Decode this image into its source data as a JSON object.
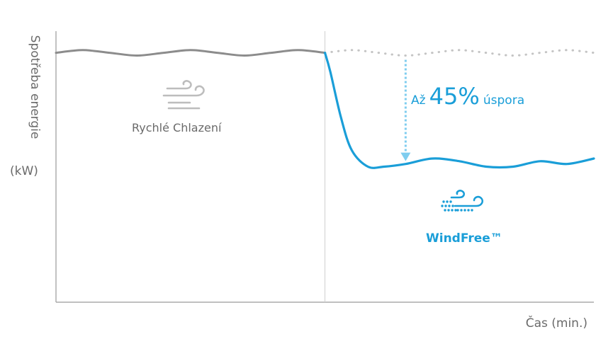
{
  "chart_data": {
    "type": "line",
    "ylabel": "Spotřeba energie",
    "yunit": "(kW)",
    "xlabel": "Čas (min.)",
    "xlim": [
      0,
      10
    ],
    "ylim": [
      0,
      10
    ],
    "grid": false,
    "series": [
      {
        "name": "Rychlé Chlazení",
        "style": "solid",
        "color": "#8c8c8c",
        "x": [
          0,
          0.5,
          1,
          1.5,
          2,
          2.5,
          3,
          3.5,
          4,
          4.5,
          5,
          5.5,
          6,
          6.5,
          7,
          7.5,
          8,
          8.5,
          9,
          9.5,
          10
        ],
        "y": [
          9.2,
          9.3,
          9.2,
          9.1,
          9.2,
          9.3,
          9.2,
          9.1,
          9.2,
          9.3,
          9.2,
          9.3,
          9.2,
          9.1,
          9.2,
          9.3,
          9.2,
          9.1,
          9.2,
          9.3,
          9.2
        ]
      },
      {
        "name": "WindFree™",
        "style": "solid",
        "color": "#1a9ed8",
        "x": [
          5,
          5.1,
          5.3,
          5.5,
          5.8,
          6.1,
          6.5,
          7,
          7.5,
          8,
          8.5,
          9,
          9.5,
          10
        ],
        "y": [
          9.2,
          8.5,
          6.8,
          5.6,
          5.0,
          5.0,
          5.1,
          5.3,
          5.2,
          5.0,
          5.0,
          5.2,
          5.1,
          5.3
        ]
      }
    ],
    "annotations": {
      "savings_prefix": "Až",
      "savings_value": "45%",
      "savings_suffix": "úspora",
      "mode_left": "Rychlé Chlazení",
      "mode_right": "WindFree™"
    },
    "divider_x": 5
  },
  "colors": {
    "gray_line": "#8c8c8c",
    "dotted_line": "#c4c4c4",
    "blue": "#1a9ed8",
    "arrow": "#7fcdef",
    "axis": "#9a9a9a",
    "text": "#6a6a6a"
  },
  "icons": {
    "left": "wind-icon",
    "right": "windfree-icon"
  }
}
